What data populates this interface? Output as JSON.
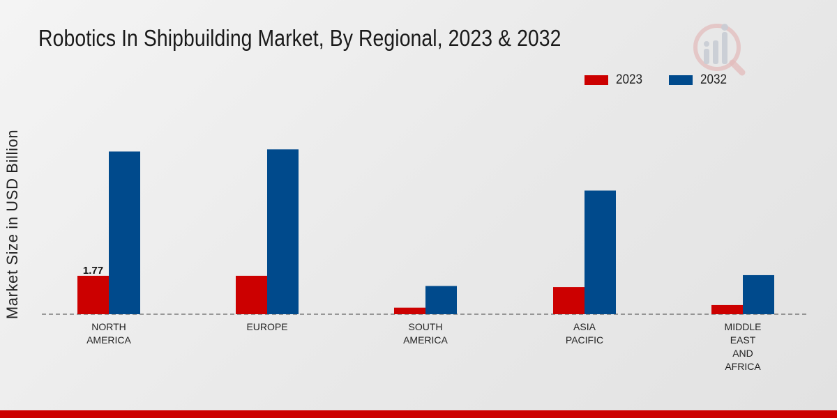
{
  "chart_data": {
    "type": "bar",
    "title": "Robotics In Shipbuilding Market, By Regional, 2023 & 2032",
    "xlabel": "",
    "ylabel": "Market Size in USD Billion",
    "categories": [
      [
        "NORTH",
        "AMERICA"
      ],
      [
        "EUROPE"
      ],
      [
        "SOUTH",
        "AMERICA"
      ],
      [
        "ASIA",
        "PACIFIC"
      ],
      [
        "MIDDLE",
        "EAST",
        "AND",
        "AFRICA"
      ]
    ],
    "series": [
      {
        "name": "2023",
        "color": "#cc0000",
        "values": [
          1.77,
          1.77,
          0.3,
          1.25,
          0.42
        ]
      },
      {
        "name": "2032",
        "color": "#004a8c",
        "values": [
          7.5,
          7.6,
          1.3,
          5.7,
          1.8
        ]
      }
    ],
    "data_labels": [
      {
        "series": 0,
        "index": 0,
        "text": "1.77"
      }
    ],
    "ylim": [
      0,
      13.2
    ],
    "grid": false,
    "legend_position": "top-right"
  }
}
